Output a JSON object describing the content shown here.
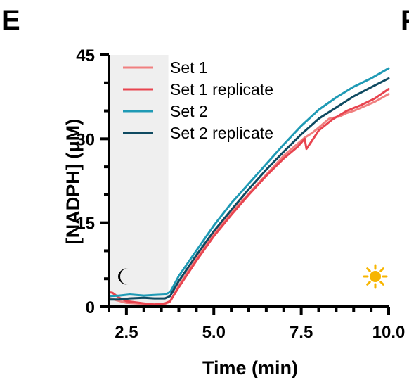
{
  "panel_labels": {
    "left": "E",
    "right": "F"
  },
  "chart_data": {
    "type": "line",
    "xlabel": "Time (min)",
    "ylabel": "[NADPH] (μM)",
    "xlim": [
      2.0,
      10.0
    ],
    "ylim": [
      0,
      45
    ],
    "x_ticks": [
      2.5,
      5.0,
      7.5,
      10.0
    ],
    "x_tick_labels": [
      "2.5",
      "5.0",
      "7.5",
      "10.0"
    ],
    "y_ticks": [
      0,
      15,
      30,
      45
    ],
    "y_tick_labels": [
      "0",
      "15",
      "30",
      "45"
    ],
    "dark_region": {
      "x_start": 2.0,
      "x_end": 3.7,
      "color": "#efefef"
    },
    "icons": {
      "dark": "moon-icon",
      "light": "sun-icon",
      "sun_color": "#f7b500"
    },
    "legend_position": "top-left",
    "grid": false,
    "series": [
      {
        "name": "Set 1",
        "color": "#f08080",
        "x": [
          2.0,
          2.2,
          2.5,
          3.0,
          3.3,
          3.6,
          3.75,
          4.0,
          4.5,
          5.0,
          5.5,
          6.0,
          6.5,
          7.0,
          7.3,
          7.6,
          7.8,
          8.0,
          8.3,
          8.6,
          8.8,
          9.0,
          9.3,
          9.6,
          10.0
        ],
        "y": [
          1.6,
          1.2,
          0.7,
          0.5,
          0.4,
          0.5,
          0.9,
          3.8,
          8.6,
          13.0,
          16.8,
          20.2,
          23.6,
          27.0,
          28.6,
          30.2,
          31.0,
          32.0,
          33.6,
          34.0,
          34.6,
          35.0,
          35.8,
          36.6,
          38.0
        ]
      },
      {
        "name": "Set 1 replicate",
        "color": "#e8444f",
        "x": [
          2.0,
          2.1,
          2.3,
          2.5,
          3.0,
          3.3,
          3.6,
          3.75,
          4.0,
          4.5,
          5.0,
          5.5,
          6.0,
          6.5,
          7.0,
          7.4,
          7.6,
          7.65,
          7.8,
          8.0,
          8.4,
          8.8,
          9.2,
          9.6,
          10.0
        ],
        "y": [
          2.6,
          2.5,
          1.6,
          1.0,
          0.6,
          0.4,
          0.6,
          1.0,
          3.5,
          8.2,
          12.6,
          16.4,
          20.0,
          23.4,
          26.5,
          28.6,
          30.0,
          28.2,
          29.6,
          31.5,
          33.5,
          35.0,
          36.0,
          37.2,
          38.9
        ]
      },
      {
        "name": "Set 2",
        "color": "#1f9ab5",
        "x": [
          2.0,
          2.3,
          2.6,
          3.0,
          3.3,
          3.6,
          3.75,
          4.0,
          4.5,
          5.0,
          5.5,
          6.0,
          6.5,
          7.0,
          7.5,
          8.0,
          8.5,
          9.0,
          9.5,
          10.0
        ],
        "y": [
          1.9,
          2.0,
          2.2,
          2.0,
          2.1,
          2.2,
          2.6,
          5.5,
          10.0,
          14.5,
          18.5,
          22.0,
          25.5,
          29.0,
          32.3,
          35.2,
          37.4,
          39.3,
          40.8,
          42.6
        ]
      },
      {
        "name": "Set 2 replicate",
        "color": "#0f4a61",
        "x": [
          2.0,
          2.3,
          2.6,
          3.0,
          3.3,
          3.6,
          3.75,
          4.0,
          4.5,
          5.0,
          5.5,
          6.0,
          6.5,
          7.0,
          7.5,
          8.0,
          8.5,
          9.0,
          9.5,
          10.0
        ],
        "y": [
          1.3,
          1.3,
          1.5,
          1.6,
          1.5,
          1.5,
          1.9,
          4.6,
          9.2,
          13.5,
          17.3,
          21.0,
          24.5,
          27.7,
          30.8,
          33.6,
          35.6,
          37.6,
          39.2,
          40.8
        ]
      }
    ]
  }
}
